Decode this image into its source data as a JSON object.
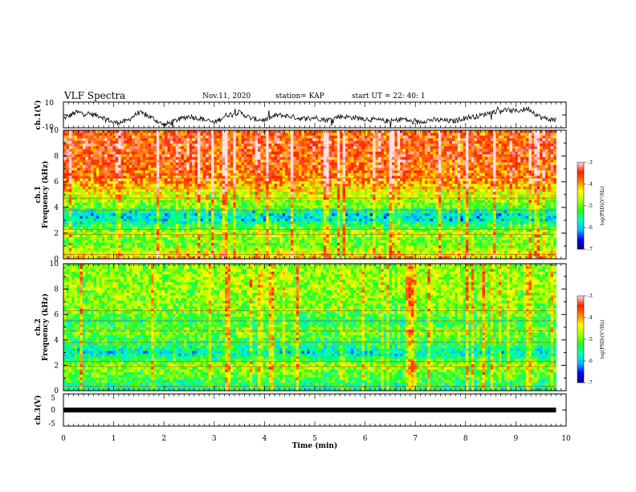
{
  "header": {
    "title": "VLF Spectra",
    "date": "Nov.11, 2020",
    "station": "station= KAP",
    "start": "start  UT =   22: 40: 1"
  },
  "chart_data": [
    {
      "type": "line",
      "ylabel": "ch.1(V)",
      "ylim": [
        -10,
        10
      ],
      "ytick_labels": [
        "10",
        "-10"
      ],
      "xlim": [
        0,
        10
      ],
      "x": [
        0,
        0.25,
        0.5,
        0.75,
        1,
        1.25,
        1.5,
        1.75,
        2,
        2.25,
        2.5,
        2.75,
        3,
        3.25,
        3.5,
        3.75,
        4,
        4.25,
        4.5,
        4.75,
        5,
        5.25,
        5.5,
        5.75,
        6,
        6.25,
        6.5,
        6.75,
        7,
        7.25,
        7.5,
        7.75,
        8,
        8.25,
        8.5,
        8.75,
        9,
        9.25,
        9.5,
        9.75,
        9.8
      ],
      "y": [
        -3,
        2,
        1,
        -1,
        -6,
        -5,
        2,
        -2,
        -8,
        -4,
        -1,
        -3,
        -6,
        0,
        2,
        -3,
        -4,
        0,
        -1,
        -3,
        -2,
        -4,
        -1,
        -2,
        -3,
        -4,
        -5,
        -3,
        -6,
        -4,
        -4,
        -5,
        -2,
        -1,
        2,
        4,
        3,
        5,
        -2,
        -4,
        -1
      ]
    },
    {
      "type": "heatmap",
      "ylabel": "ch.1\nFrequency  (kHz)",
      "ylim": [
        0,
        10
      ],
      "yticks": [
        0,
        2,
        4,
        6,
        8,
        10
      ],
      "xlim": [
        0,
        10
      ],
      "data_end_min": 9.8,
      "colorbar": {
        "label": "log(PSD)(V²/Hz)",
        "range": [
          -7,
          -3
        ],
        "ticks": [
          -7,
          -6,
          -5,
          -4,
          -3
        ]
      },
      "profile_freq_khz": [
        0,
        0.5,
        1.0,
        1.5,
        2.0,
        2.5,
        3.0,
        3.5,
        4.0,
        4.5,
        5.0,
        5.5,
        6.0,
        7.0,
        8.0,
        9.0,
        10.0
      ],
      "profile_log_psd": [
        -4.2,
        -4.5,
        -5.0,
        -5.0,
        -4.7,
        -5.2,
        -5.8,
        -5.9,
        -5.0,
        -4.8,
        -4.5,
        -4.3,
        -3.9,
        -3.7,
        -3.6,
        -3.6,
        -3.7
      ]
    },
    {
      "type": "heatmap",
      "ylabel": "ch.2\nFrequency  (kHz)",
      "ylim": [
        0,
        10
      ],
      "yticks": [
        0,
        2,
        4,
        6,
        8,
        10
      ],
      "xlim": [
        0,
        10
      ],
      "data_end_min": 9.8,
      "colorbar": {
        "label": "log(PSD)(V²/Hz)",
        "range": [
          -7,
          -3
        ],
        "ticks": [
          -7,
          -6,
          -5,
          -4,
          -3
        ]
      },
      "profile_freq_khz": [
        0,
        0.5,
        1.0,
        1.5,
        2.0,
        2.5,
        3.0,
        3.5,
        4.0,
        4.5,
        5.0,
        5.5,
        6.0,
        7.0,
        8.0,
        9.0,
        10.0
      ],
      "profile_log_psd": [
        -5.6,
        -5.4,
        -5.2,
        -5.0,
        -4.8,
        -5.3,
        -5.8,
        -5.4,
        -5.2,
        -5.0,
        -5.1,
        -5.4,
        -5.0,
        -4.9,
        -4.8,
        -4.8,
        -4.9
      ]
    },
    {
      "type": "line",
      "ylabel": "ch.3(V)",
      "ylim": [
        -5,
        5
      ],
      "ytick_labels": [
        "5",
        "0",
        "-5"
      ],
      "xlim": [
        0,
        10
      ],
      "x": [
        0,
        9.8
      ],
      "y": [
        0,
        0
      ]
    }
  ],
  "xaxis": {
    "label": "Time  (min)",
    "ticks": [
      "0",
      "1",
      "2",
      "3",
      "4",
      "5",
      "6",
      "7",
      "8",
      "9",
      "10"
    ]
  },
  "colors": {
    "colormap": [
      "#000080",
      "#0000ff",
      "#00bfff",
      "#00ffc0",
      "#20ff20",
      "#aaff00",
      "#ffff00",
      "#ff8000",
      "#ff2000",
      "#ffe0e0"
    ],
    "trace": "#000000"
  }
}
